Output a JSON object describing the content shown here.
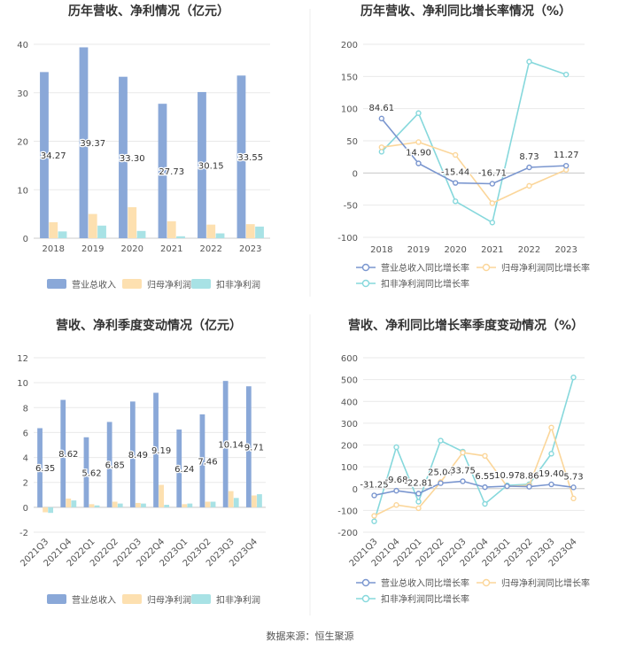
{
  "source": "数据来源：恒生聚源",
  "colors": {
    "s1": "#8aa8d8",
    "s2": "#fde0b0",
    "s3": "#a8e2e5",
    "line1": "#7a96cf",
    "line2": "#fbd69a",
    "line3": "#86d8dc",
    "grid": "#e9e9e9",
    "axis": "#999999",
    "text": "#555555",
    "title": "#333333"
  },
  "chart_data": [
    {
      "type": "bar",
      "title": "历年营收、净利情况（亿元）",
      "categories": [
        "2018",
        "2019",
        "2020",
        "2021",
        "2022",
        "2023"
      ],
      "ylim": [
        0,
        40
      ],
      "yticks": [
        "0",
        "10",
        "20",
        "30",
        "40"
      ],
      "ytick_values": [
        0,
        10,
        20,
        30,
        40
      ],
      "series": [
        {
          "name": "营业总收入",
          "values": [
            34.27,
            39.37,
            33.3,
            27.73,
            30.15,
            33.55
          ],
          "labels": [
            "34.27",
            "39.37",
            "33.30",
            "27.73",
            "30.15",
            "33.55"
          ]
        },
        {
          "name": "归母净利润",
          "values": [
            3.3,
            5.0,
            6.4,
            3.5,
            2.8,
            2.9
          ]
        },
        {
          "name": "扣非净利润",
          "values": [
            1.4,
            2.6,
            1.5,
            0.4,
            1.0,
            2.4
          ]
        }
      ]
    },
    {
      "type": "line",
      "title": "历年营收、净利同比增长率情况（%）",
      "categories": [
        "2018",
        "2019",
        "2020",
        "2021",
        "2022",
        "2023"
      ],
      "ylim": [
        -100,
        200
      ],
      "yticks": [
        "-100",
        "-50",
        "0",
        "50",
        "100",
        "150",
        "200"
      ],
      "ytick_values": [
        -100,
        -50,
        0,
        50,
        100,
        150,
        200
      ],
      "series": [
        {
          "name": "营业总收入同比增长率",
          "values": [
            84.61,
            14.9,
            -15.44,
            -16.71,
            8.73,
            11.27
          ],
          "labels": [
            "84.61",
            "14.90",
            "-15.44",
            "-16.71",
            "8.73",
            "11.27"
          ]
        },
        {
          "name": "归母净利润同比增长率",
          "values": [
            40,
            48,
            28,
            -47,
            -20,
            5
          ]
        },
        {
          "name": "扣非净利润同比增长率",
          "values": [
            33,
            93,
            -44,
            -77,
            173,
            153
          ]
        }
      ]
    },
    {
      "type": "bar",
      "title": "营收、净利季度变动情况（亿元）",
      "categories": [
        "2021Q3",
        "2021Q4",
        "2022Q1",
        "2022Q2",
        "2022Q3",
        "2022Q4",
        "2023Q1",
        "2023Q2",
        "2023Q3",
        "2023Q4"
      ],
      "ylim": [
        -2,
        12
      ],
      "yticks": [
        "-2",
        "0",
        "2",
        "4",
        "6",
        "8",
        "10",
        "12"
      ],
      "ytick_values": [
        -2,
        0,
        2,
        4,
        6,
        8,
        10,
        12
      ],
      "series": [
        {
          "name": "营业总收入",
          "values": [
            6.35,
            8.62,
            5.62,
            6.85,
            8.49,
            9.19,
            6.24,
            7.46,
            10.14,
            9.71
          ],
          "labels": [
            "6.35",
            "8.62",
            "5.62",
            "6.85",
            "8.49",
            "9.19",
            "6.24",
            "7.46",
            "10.14",
            "9.71"
          ]
        },
        {
          "name": "归母净利润",
          "values": [
            -0.4,
            0.7,
            0.25,
            0.45,
            0.35,
            1.8,
            0.25,
            0.45,
            1.3,
            0.95
          ]
        },
        {
          "name": "扣非净利润",
          "values": [
            -0.45,
            0.55,
            0.15,
            0.3,
            0.3,
            0.2,
            0.3,
            0.45,
            0.75,
            1.05
          ]
        }
      ]
    },
    {
      "type": "line",
      "title": "营收、净利同比增长率季度变动情况（%）",
      "categories": [
        "2021Q3",
        "2021Q4",
        "2022Q1",
        "2022Q2",
        "2022Q3",
        "2022Q4",
        "2023Q1",
        "2023Q2",
        "2023Q3",
        "2023Q4"
      ],
      "ylim": [
        -200,
        600
      ],
      "yticks": [
        "-200",
        "-100",
        "0",
        "100",
        "200",
        "300",
        "400",
        "500",
        "600"
      ],
      "ytick_values": [
        -200,
        -100,
        0,
        100,
        200,
        300,
        400,
        500,
        600
      ],
      "series": [
        {
          "name": "营业总收入同比增长率",
          "values": [
            -31.25,
            -9.68,
            -22.81,
            25.04,
            33.75,
            6.55,
            10.97,
            8.86,
            19.4,
            5.73
          ],
          "labels": [
            "-31.25",
            "-9.68",
            "-22.81",
            "25.04",
            "33.75",
            "6.55",
            "10.97",
            "8.86",
            "19.40",
            "5.73"
          ]
        },
        {
          "name": "归母净利润同比增长率",
          "values": [
            -125,
            -75,
            -90,
            30,
            165,
            150,
            10,
            15,
            280,
            -45
          ]
        },
        {
          "name": "扣非净利润同比增长率",
          "values": [
            -150,
            190,
            -60,
            220,
            170,
            -70,
            15,
            20,
            160,
            510
          ]
        }
      ]
    }
  ]
}
